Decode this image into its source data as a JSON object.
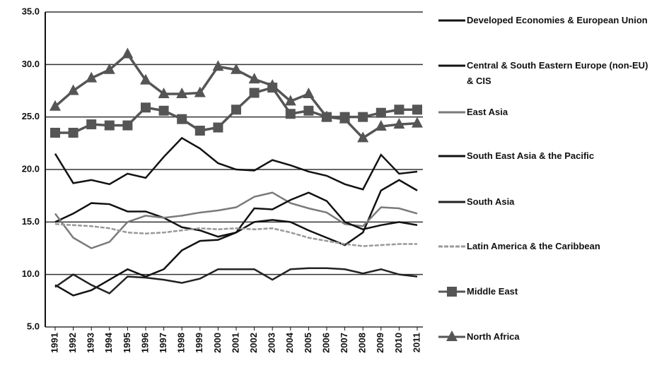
{
  "chart_data": {
    "type": "line",
    "categories": [
      "1991",
      "1992",
      "1993",
      "1994",
      "1995",
      "1996",
      "1997",
      "1998",
      "1999",
      "2000",
      "2001",
      "2002",
      "2003",
      "2004",
      "2005",
      "2006",
      "2007",
      "2008",
      "2009",
      "2010",
      "2011"
    ],
    "ylim": [
      5,
      35
    ],
    "yticks": [
      {
        "value": 5,
        "label": "5.0"
      },
      {
        "value": 10,
        "label": "10.0"
      },
      {
        "value": 15,
        "label": "15.0"
      },
      {
        "value": 20,
        "label": "20.0"
      },
      {
        "value": 25,
        "label": "25.0"
      },
      {
        "value": 30,
        "label": "30.0"
      },
      {
        "value": 35,
        "label": "35.0"
      }
    ],
    "grid": true,
    "legend": "right",
    "series": [
      {
        "name": "Developed Economies & European Union",
        "color": "#111111",
        "values": [
          15.0,
          15.8,
          16.8,
          16.7,
          16.0,
          16.0,
          15.4,
          14.5,
          14.2,
          13.6,
          14.0,
          15.0,
          15.2,
          15.0,
          14.2,
          13.5,
          12.8,
          14.0,
          18.0,
          19.0,
          18.0
        ]
      },
      {
        "name": "Central & South Eastern Europe (non-EU) & CIS",
        "color": "#111111",
        "values": [
          21.5,
          18.7,
          19.0,
          18.6,
          19.6,
          19.2,
          21.2,
          23.0,
          22.0,
          20.6,
          20.0,
          19.9,
          20.9,
          20.4,
          19.8,
          19.4,
          18.6,
          18.1,
          21.4,
          19.6,
          19.8
        ]
      },
      {
        "name": "East Asia",
        "color": "#7a7a7a",
        "values": [
          15.8,
          13.5,
          12.5,
          13.1,
          15.0,
          15.6,
          15.4,
          15.6,
          15.9,
          16.1,
          16.4,
          17.4,
          17.8,
          16.8,
          16.3,
          15.9,
          14.8,
          14.6,
          16.4,
          16.3,
          15.8
        ]
      },
      {
        "name": "South East Asia & the Pacific",
        "color": "#111111",
        "values": [
          9.0,
          8.0,
          8.5,
          9.5,
          10.5,
          9.8,
          10.5,
          12.3,
          13.2,
          13.3,
          14.0,
          16.3,
          16.2,
          17.1,
          17.8,
          17.0,
          15.0,
          14.3,
          14.7,
          15.0,
          14.7
        ]
      },
      {
        "name": "South Asia",
        "color": "#222222",
        "values": [
          8.8,
          10.0,
          9.0,
          8.2,
          9.8,
          9.7,
          9.5,
          9.2,
          9.6,
          10.5,
          10.5,
          10.5,
          9.5,
          10.5,
          10.6,
          10.6,
          10.5,
          10.1,
          10.5,
          10.0,
          9.8
        ]
      },
      {
        "name": "Latin America & the Caribbean",
        "color": "#999999",
        "dashed": true,
        "values": [
          14.8,
          14.7,
          14.6,
          14.4,
          14.0,
          13.9,
          14.0,
          14.2,
          14.4,
          14.3,
          14.4,
          14.3,
          14.4,
          14.0,
          13.5,
          13.2,
          12.9,
          12.7,
          12.8,
          12.9,
          12.9
        ]
      },
      {
        "name": "Middle East",
        "color": "#555555",
        "marker": "square",
        "values": [
          23.5,
          23.5,
          24.3,
          24.2,
          24.2,
          25.9,
          25.6,
          24.8,
          23.7,
          24.0,
          25.7,
          27.3,
          27.8,
          25.3,
          25.6,
          25.0,
          25.0,
          25.0,
          25.4,
          25.7,
          25.7
        ]
      },
      {
        "name": "North Africa",
        "color": "#555555",
        "marker": "triangle",
        "values": [
          26.0,
          27.5,
          28.7,
          29.5,
          31.0,
          28.5,
          27.2,
          27.2,
          27.3,
          29.8,
          29.5,
          28.6,
          28.0,
          26.5,
          27.2,
          25.0,
          24.8,
          23.0,
          24.1,
          24.3,
          24.4
        ]
      }
    ]
  }
}
